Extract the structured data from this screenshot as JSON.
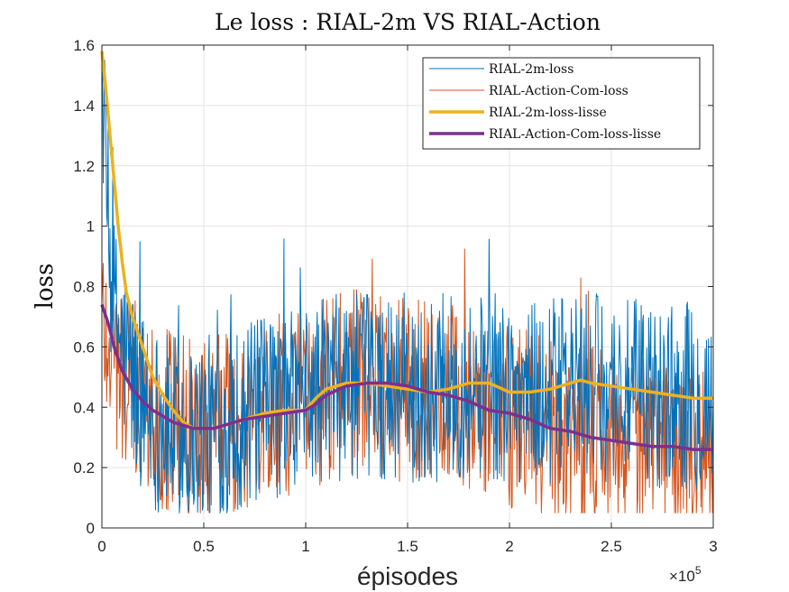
{
  "chart_data": {
    "type": "line",
    "title": "Le loss : RIAL-2m VS RIAL-Action",
    "xlabel": "épisodes",
    "ylabel": "loss",
    "x_multiplier": "×10",
    "x_multiplier_exp": "5",
    "xlim": [
      0,
      3
    ],
    "ylim": [
      0,
      1.6
    ],
    "xticks": [
      "0",
      "0.5",
      "1",
      "1.5",
      "2",
      "2.5",
      "3"
    ],
    "yticks": [
      "0",
      "0.2",
      "0.4",
      "0.6",
      "0.8",
      "1",
      "1.2",
      "1.4",
      "1.6"
    ],
    "grid": true,
    "legend_position": "top-right",
    "series": [
      {
        "name": "RIAL-2m-loss",
        "color": "#0072BD",
        "style": "thin",
        "noisy": true,
        "x": [
          0,
          0.02,
          0.05,
          0.1,
          0.15,
          0.2,
          0.3,
          0.4,
          0.5,
          0.6,
          0.7,
          0.8,
          0.9,
          1.0,
          1.1,
          1.2,
          1.3,
          1.4,
          1.5,
          1.6,
          1.7,
          1.8,
          1.9,
          2.0,
          2.1,
          2.2,
          2.3,
          2.4,
          2.5,
          2.6,
          2.7,
          2.8,
          2.9,
          3.0
        ],
        "y": [
          1.5,
          1.15,
          0.75,
          0.6,
          0.5,
          0.42,
          0.34,
          0.32,
          0.33,
          0.34,
          0.37,
          0.39,
          0.41,
          0.43,
          0.46,
          0.47,
          0.47,
          0.46,
          0.45,
          0.45,
          0.46,
          0.47,
          0.47,
          0.46,
          0.45,
          0.45,
          0.46,
          0.47,
          0.46,
          0.45,
          0.44,
          0.44,
          0.43,
          0.43
        ]
      },
      {
        "name": "RIAL-Action-Com-loss",
        "color": "#D95319",
        "style": "thin",
        "noisy": true,
        "x": [
          0,
          0.05,
          0.1,
          0.2,
          0.3,
          0.4,
          0.5,
          0.6,
          0.7,
          0.8,
          0.9,
          1.0,
          1.1,
          1.2,
          1.3,
          1.4,
          1.5,
          1.6,
          1.7,
          1.8,
          1.9,
          2.0,
          2.1,
          2.2,
          2.3,
          2.4,
          2.5,
          2.6,
          2.7,
          2.8,
          2.9,
          3.0
        ],
        "y": [
          0.72,
          0.6,
          0.5,
          0.42,
          0.37,
          0.34,
          0.33,
          0.34,
          0.36,
          0.37,
          0.38,
          0.42,
          0.46,
          0.48,
          0.48,
          0.47,
          0.46,
          0.45,
          0.44,
          0.42,
          0.39,
          0.37,
          0.35,
          0.33,
          0.31,
          0.3,
          0.29,
          0.28,
          0.27,
          0.27,
          0.26,
          0.26
        ]
      },
      {
        "name": "RIAL-2m-loss-lisse",
        "color": "#EDB120",
        "style": "thick",
        "x": [
          0,
          0.02,
          0.04,
          0.06,
          0.08,
          0.1,
          0.12,
          0.15,
          0.2,
          0.25,
          0.3,
          0.35,
          0.4,
          0.45,
          0.5,
          0.55,
          0.6,
          0.7,
          0.8,
          0.9,
          1.0,
          1.05,
          1.1,
          1.15,
          1.2,
          1.3,
          1.4,
          1.5,
          1.6,
          1.7,
          1.75,
          1.8,
          1.9,
          2.0,
          2.1,
          2.2,
          2.3,
          2.35,
          2.4,
          2.5,
          2.6,
          2.7,
          2.8,
          2.9,
          3.0
        ],
        "y": [
          1.58,
          1.45,
          1.3,
          1.15,
          1.0,
          0.88,
          0.78,
          0.7,
          0.6,
          0.5,
          0.44,
          0.39,
          0.35,
          0.33,
          0.33,
          0.33,
          0.34,
          0.36,
          0.38,
          0.39,
          0.39,
          0.43,
          0.46,
          0.47,
          0.48,
          0.48,
          0.47,
          0.46,
          0.45,
          0.46,
          0.47,
          0.48,
          0.48,
          0.45,
          0.45,
          0.46,
          0.48,
          0.49,
          0.48,
          0.47,
          0.46,
          0.45,
          0.44,
          0.43,
          0.43
        ]
      },
      {
        "name": "RIAL-Action-Com-loss-lisse",
        "color": "#7E2F8E",
        "style": "thick",
        "x": [
          0,
          0.03,
          0.06,
          0.1,
          0.15,
          0.2,
          0.25,
          0.3,
          0.35,
          0.4,
          0.45,
          0.5,
          0.55,
          0.6,
          0.7,
          0.8,
          0.9,
          1.0,
          1.05,
          1.1,
          1.2,
          1.3,
          1.4,
          1.5,
          1.6,
          1.7,
          1.8,
          1.9,
          2.0,
          2.1,
          2.2,
          2.3,
          2.4,
          2.5,
          2.6,
          2.7,
          2.8,
          2.9,
          3.0
        ],
        "y": [
          0.74,
          0.68,
          0.6,
          0.52,
          0.46,
          0.42,
          0.39,
          0.37,
          0.35,
          0.34,
          0.33,
          0.33,
          0.33,
          0.34,
          0.36,
          0.37,
          0.38,
          0.39,
          0.41,
          0.44,
          0.47,
          0.48,
          0.48,
          0.47,
          0.45,
          0.44,
          0.42,
          0.39,
          0.38,
          0.36,
          0.33,
          0.32,
          0.3,
          0.29,
          0.28,
          0.27,
          0.27,
          0.26,
          0.26
        ]
      }
    ]
  }
}
